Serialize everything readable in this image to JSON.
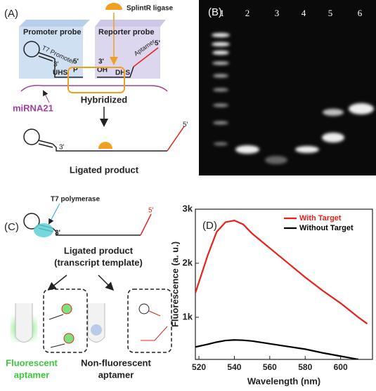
{
  "panel_a": {
    "label": "(A)",
    "enzyme": "SplintR ligase",
    "promoter_probe": "Promoter probe",
    "reporter_probe": "Reporter probe",
    "t7_promoter": "T7 Promoter",
    "promoter_end": "3'",
    "phosphate_end": "5'",
    "phosphate": "P",
    "hydroxyl_end": "3'",
    "hydroxyl": "OH",
    "aptamer": "Aptamer",
    "reporter_end": "5'",
    "uhs": "UHS",
    "dhs": "DHS",
    "target": "miRNA21",
    "hybridized": "Hybridized",
    "product_3": "3'",
    "product_5": "5'",
    "ligated_product": "Ligated product"
  },
  "panel_b": {
    "label": "(B)",
    "lanes": [
      "1",
      "2",
      "3",
      "4",
      "5",
      "6"
    ]
  },
  "panel_c": {
    "label": "(C)",
    "enzyme": "T7 polymerase",
    "end_3": "3'",
    "end_5": "5'",
    "template": [
      "Ligated product",
      "(transcript template)"
    ],
    "fluorescent": [
      "Fluorescent",
      "aptamer"
    ],
    "non_fluorescent": [
      "Non-fluorescent",
      "aptamer"
    ]
  },
  "chart_data": {
    "type": "line",
    "panel_label": "(D)",
    "x_label": "Wavelength (nm)",
    "y_label": "Fluorescence (a. u.)",
    "x": [
      518,
      525,
      530,
      535,
      540,
      545,
      550,
      560,
      570,
      580,
      590,
      600,
      610,
      615
    ],
    "series": [
      {
        "name": "With Target",
        "color": "#e8211c",
        "values": [
          1450,
          2150,
          2580,
          2760,
          2790,
          2720,
          2550,
          2280,
          2010,
          1740,
          1490,
          1260,
          1000,
          880
        ]
      },
      {
        "name": "Without Target",
        "color": "#000000",
        "values": [
          450,
          500,
          540,
          570,
          580,
          575,
          560,
          510,
          460,
          410,
          340,
          280,
          220,
          null
        ]
      }
    ],
    "xlim": [
      518,
      618
    ],
    "xticks": [
      520,
      540,
      560,
      580,
      600
    ],
    "ylim": [
      220,
      3000
    ],
    "yticks": [
      {
        "value": 1000,
        "label": "1k"
      },
      {
        "value": 2000,
        "label": "2k"
      },
      {
        "value": 3000,
        "label": "3k"
      }
    ],
    "legend": "upper right"
  }
}
